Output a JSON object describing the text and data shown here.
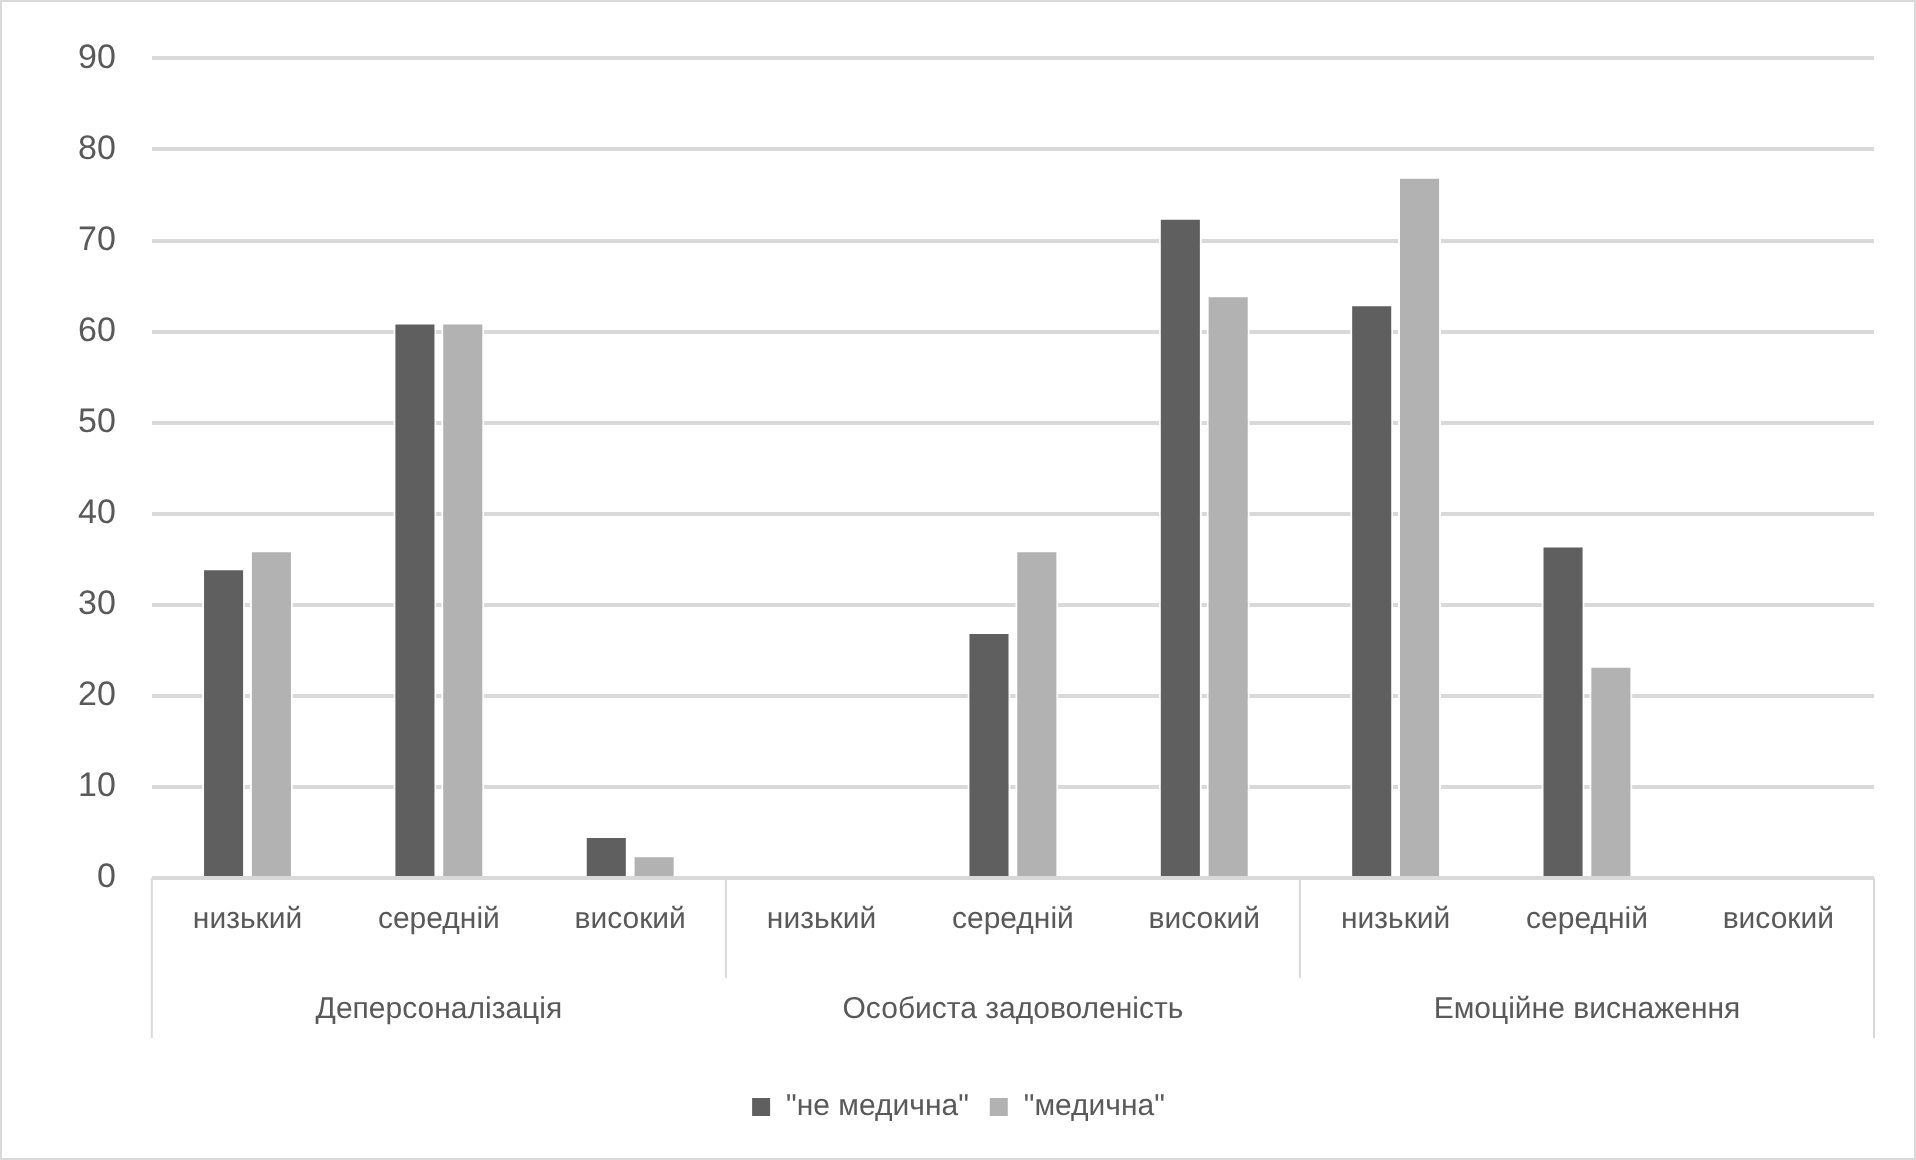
{
  "chart_data": {
    "type": "bar",
    "categories": [
      "низький",
      "середній",
      "високий",
      "низький",
      "середній",
      "високий",
      "низький",
      "середній",
      "високий"
    ],
    "series": [
      {
        "name": "\"не медична\"",
        "color": "#5f5f5f",
        "values": [
          34,
          61,
          4.6,
          0,
          27,
          72.5,
          63,
          36.5,
          0
        ]
      },
      {
        "name": "\"медична\"",
        "color": "#b2b2b2",
        "values": [
          36,
          61,
          2.5,
          0,
          36,
          64,
          77,
          23.3,
          0
        ]
      }
    ],
    "ylim": [
      0,
      90
    ],
    "yticks": [
      0,
      10,
      20,
      30,
      40,
      50,
      60,
      70,
      80,
      90
    ],
    "grid": "y",
    "legend": "bottom",
    "annotations": [
      "Деперсоналізація",
      "Особиста задоволеність",
      "Емоційне виснаження"
    ]
  }
}
